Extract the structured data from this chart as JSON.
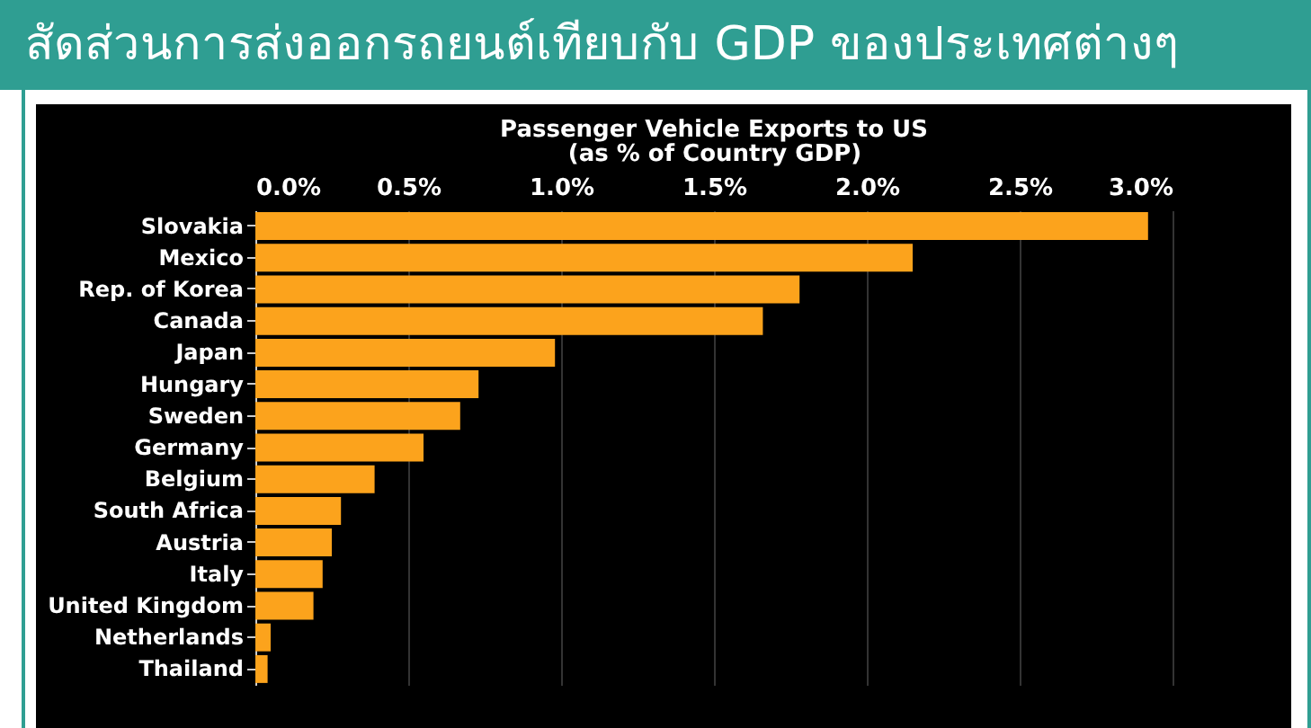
{
  "chart_data": {
    "type": "bar",
    "orientation": "horizontal",
    "title": "สัดส่วนการส่งออกรถยนต์เทียบกับ GDP ของประเทศต่างๆ",
    "subtitle": "Passenger Vehicle Exports to US",
    "xlabel": "(as % of Country GDP)",
    "categories": [
      "Slovakia",
      "Mexico",
      "Rep. of Korea",
      "Canada",
      "Japan",
      "Hungary",
      "Sweden",
      "Germany",
      "Belgium",
      "South Africa",
      "Austria",
      "Italy",
      "United Kingdom",
      "Netherlands",
      "Thailand"
    ],
    "values": [
      2.92,
      2.15,
      1.78,
      1.66,
      0.98,
      0.73,
      0.67,
      0.55,
      0.39,
      0.28,
      0.25,
      0.22,
      0.19,
      0.05,
      0.04
    ],
    "color": "#fca31c",
    "xlim": [
      0,
      3.0
    ],
    "xticks": [
      {
        "value": 0,
        "label": "0.0%"
      },
      {
        "value": 0.5,
        "label": "0.5%"
      },
      {
        "value": 1.0,
        "label": "1.0%"
      },
      {
        "value": 1.5,
        "label": "1.5%"
      },
      {
        "value": 2.0,
        "label": "2.0%"
      },
      {
        "value": 2.5,
        "label": "2.5%"
      },
      {
        "value": 3.0,
        "label": "3.0%"
      }
    ],
    "grid": "x"
  }
}
